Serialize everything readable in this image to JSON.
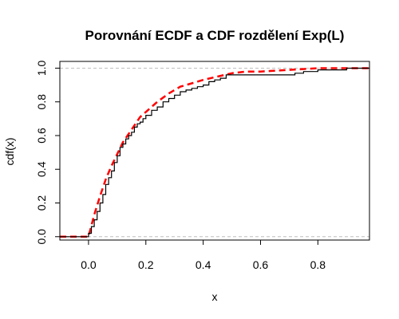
{
  "chart_data": {
    "type": "line",
    "title": "Porovnání ECDF a CDF rozdělení Exp(L)",
    "xlabel": "x",
    "ylabel": "cdf(x)",
    "xlim": [
      -0.1,
      0.98
    ],
    "ylim": [
      -0.02,
      1.04
    ],
    "x_ticks": [
      "0.0",
      "0.2",
      "0.4",
      "0.6",
      "0.8"
    ],
    "y_ticks": [
      "0.0",
      "0.2",
      "0.4",
      "0.6",
      "0.8",
      "1.0"
    ],
    "reference_lines": [
      0,
      1
    ],
    "grid": false,
    "legend": "none",
    "colors": {
      "ecdf": "#000000",
      "cdf": "#ff0000",
      "reference": "#bebebe"
    },
    "series": [
      {
        "kind": "step",
        "x": [
          -0.1,
          0.0,
          0.01,
          0.02,
          0.03,
          0.04,
          0.05,
          0.06,
          0.07,
          0.08,
          0.09,
          0.1,
          0.11,
          0.12,
          0.13,
          0.14,
          0.15,
          0.16,
          0.17,
          0.18,
          0.19,
          0.2,
          0.22,
          0.24,
          0.26,
          0.28,
          0.3,
          0.32,
          0.34,
          0.36,
          0.38,
          0.4,
          0.42,
          0.44,
          0.46,
          0.48,
          0.5,
          0.52,
          0.55,
          0.6,
          0.66,
          0.72,
          0.75,
          0.76,
          0.8,
          0.86,
          0.9,
          0.98
        ],
        "y": [
          0.0,
          0.02,
          0.06,
          0.1,
          0.15,
          0.2,
          0.25,
          0.31,
          0.35,
          0.39,
          0.44,
          0.48,
          0.53,
          0.55,
          0.58,
          0.6,
          0.62,
          0.65,
          0.67,
          0.68,
          0.7,
          0.72,
          0.75,
          0.77,
          0.8,
          0.82,
          0.84,
          0.86,
          0.87,
          0.88,
          0.89,
          0.9,
          0.92,
          0.93,
          0.94,
          0.96,
          0.96,
          0.96,
          0.96,
          0.96,
          0.96,
          0.97,
          0.98,
          0.98,
          0.99,
          0.99,
          1.0,
          1.0
        ]
      },
      {
        "kind": "curve",
        "rate": 6.8,
        "x": [
          -0.1,
          0.0,
          0.02,
          0.04,
          0.06,
          0.08,
          0.1,
          0.12,
          0.14,
          0.16,
          0.18,
          0.2,
          0.24,
          0.28,
          0.32,
          0.36,
          0.4,
          0.45,
          0.5,
          0.55,
          0.6,
          0.7,
          0.8,
          0.9,
          0.98
        ],
        "y": [
          0.0,
          0.0,
          0.13,
          0.24,
          0.34,
          0.42,
          0.49,
          0.56,
          0.61,
          0.66,
          0.71,
          0.74,
          0.8,
          0.85,
          0.89,
          0.91,
          0.93,
          0.95,
          0.97,
          0.98,
          0.98,
          0.99,
          1.0,
          1.0,
          1.0
        ]
      }
    ]
  }
}
